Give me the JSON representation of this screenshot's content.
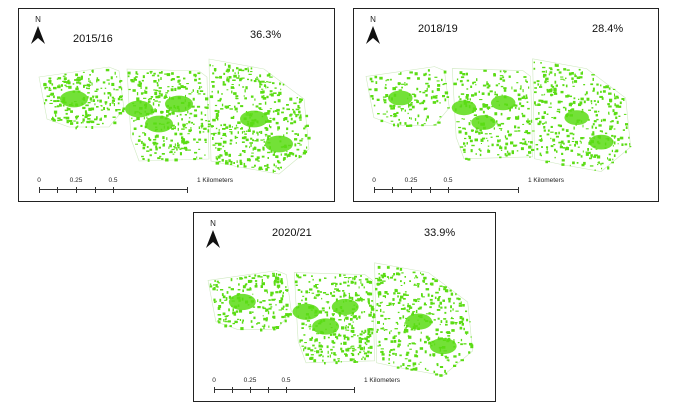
{
  "colors": {
    "vegetation": "#5bdc14",
    "frame": "#222222",
    "background": "#ffffff"
  },
  "panels": [
    {
      "id": "2015",
      "year": "2015/16",
      "percentage": "36.3%",
      "north_label": "N",
      "coverage_fraction": 0.363,
      "scale_ticks": [
        "0",
        "0.25",
        "0.5",
        "1 Kilometers"
      ]
    },
    {
      "id": "2018",
      "year": "2018/19",
      "percentage": "28.4%",
      "north_label": "N",
      "coverage_fraction": 0.284,
      "scale_ticks": [
        "0",
        "0.25",
        "0.5",
        "1 Kilometers"
      ]
    },
    {
      "id": "2020",
      "year": "2020/21",
      "percentage": "33.9%",
      "north_label": "N",
      "coverage_fraction": 0.339,
      "scale_ticks": [
        "0",
        "0.25",
        "0.5",
        "1 Kilometers"
      ]
    }
  ]
}
